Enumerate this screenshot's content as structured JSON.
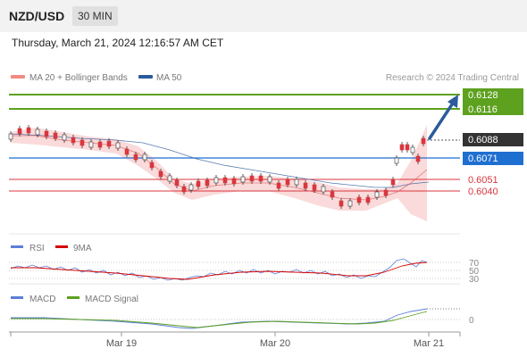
{
  "header": {
    "pair": "NZD/USD",
    "timeframe": "30 MIN",
    "datetime": "Thursday, March 21, 2024 12:16:57 AM CET"
  },
  "main_chart": {
    "legend": {
      "ma20_label": "MA 20 + Bollinger Bands",
      "ma50_label": "MA 50",
      "ma20_color": "#f28b82",
      "ma50_color": "#2c5b9c",
      "watermark": "Research © 2024 Trading Central"
    },
    "levels": {
      "resistance_2": "0.6128",
      "resistance_1": "0.6116",
      "current": "0.6088",
      "pivot": "0.6071",
      "support_1": "0.6051",
      "support_2": "0.6040"
    },
    "colors": {
      "resistance": "#5da11f",
      "pivot": "#1f6fd1",
      "support": "#d9363e",
      "current": "#333333",
      "candle": "#d9363e",
      "arrow": "#2c5b9c"
    }
  },
  "rsi_panel": {
    "rsi_label": "RSI",
    "ma9_label": "9MA",
    "rsi_color": "#5a7fd6",
    "ma9_color": "#d40000",
    "levels": [
      "70",
      "50",
      "30"
    ]
  },
  "macd_panel": {
    "macd_label": "MACD",
    "signal_label": "MACD Signal",
    "macd_color": "#5a7fd6",
    "signal_color": "#5da11f",
    "zero_label": "0"
  },
  "x_axis": {
    "labels": [
      "Mar 19",
      "Mar 20",
      "Mar 21"
    ]
  }
}
